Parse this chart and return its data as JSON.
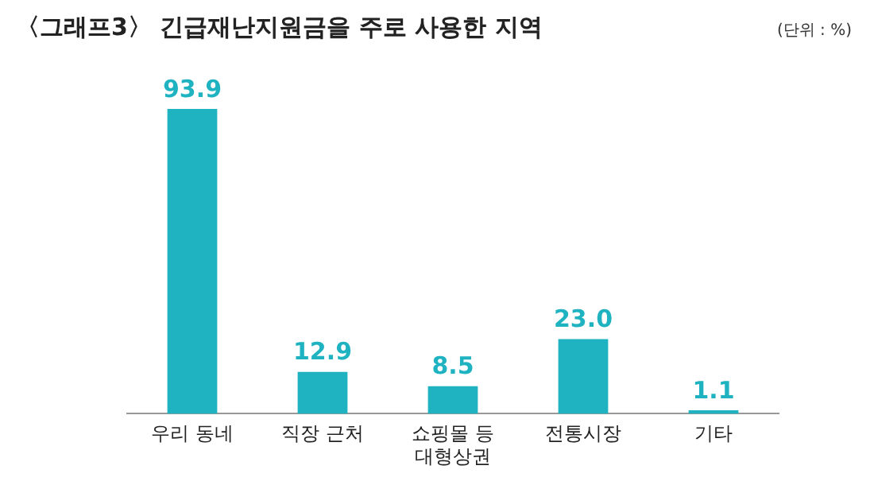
{
  "chart_data": {
    "type": "bar",
    "title": "〈그래프3〉 긴급재난지원금을 주로 사용한 지역",
    "subtitle": "(단위 : %)",
    "categories": [
      "우리 동네",
      "직장 근처",
      "쇼핑몰 등\n대형상권",
      "전통시장",
      "기타"
    ],
    "values": [
      93.9,
      12.9,
      8.5,
      23.0,
      1.1
    ],
    "value_labels": [
      "93.9",
      "12.9",
      "8.5",
      "23.0",
      "1.1"
    ],
    "color": "#1fb3c1",
    "tick_labels": "x",
    "grid": false,
    "legend": false
  }
}
